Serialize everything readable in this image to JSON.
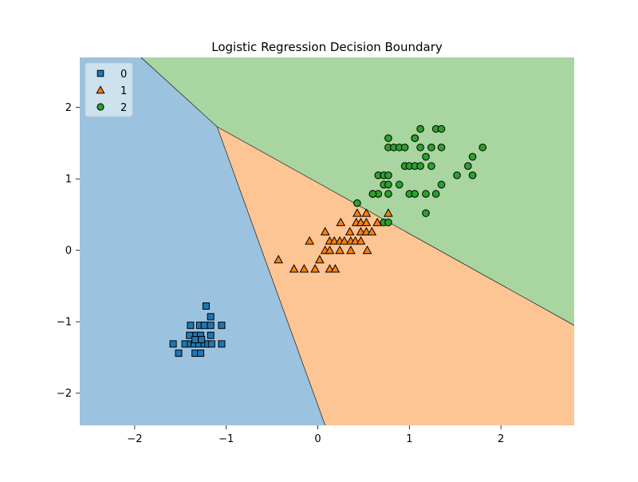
{
  "chart_data": {
    "type": "scatter",
    "title": "Logistic Regression Decision Boundary",
    "xlabel": "",
    "ylabel": "",
    "xlim": [
      -2.6,
      2.8
    ],
    "ylim": [
      -2.45,
      2.7
    ],
    "xticks": [
      -2,
      -1,
      0,
      1,
      2
    ],
    "yticks": [
      -2,
      -1,
      0,
      1,
      2
    ],
    "xtick_labels": [
      "−2",
      "−1",
      "0",
      "1",
      "2"
    ],
    "ytick_labels": [
      "−2",
      "−1",
      "0",
      "1",
      "2"
    ],
    "grid": false,
    "legend_position": "top-left",
    "regions": [
      {
        "class": "0",
        "color": "#9bc2de",
        "polygon": [
          [
            -2.6,
            -2.45
          ],
          [
            0.08,
            -2.45
          ],
          [
            -1.1,
            1.73
          ],
          [
            -1.93,
            2.7
          ],
          [
            -2.6,
            2.7
          ]
        ]
      },
      {
        "class": "1",
        "color": "#fdc494",
        "polygon": [
          [
            0.08,
            -2.45
          ],
          [
            2.8,
            -2.45
          ],
          [
            2.8,
            -1.05
          ],
          [
            -1.1,
            1.73
          ]
        ]
      },
      {
        "class": "2",
        "color": "#a8d5a0",
        "polygon": [
          [
            -1.1,
            1.73
          ],
          [
            2.8,
            -1.05
          ],
          [
            2.8,
            2.7
          ],
          [
            -1.93,
            2.7
          ]
        ]
      }
    ],
    "series": [
      {
        "name": "0",
        "marker": "square",
        "color": "#1f77b4",
        "points": [
          [
            -1.22,
            -0.78
          ],
          [
            -1.17,
            -0.93
          ],
          [
            -1.39,
            -1.05
          ],
          [
            -1.29,
            -1.05
          ],
          [
            -1.24,
            -1.05
          ],
          [
            -1.17,
            -1.05
          ],
          [
            -1.05,
            -1.05
          ],
          [
            -1.4,
            -1.19
          ],
          [
            -1.33,
            -1.19
          ],
          [
            -1.28,
            -1.19
          ],
          [
            -1.17,
            -1.19
          ],
          [
            -1.58,
            -1.31
          ],
          [
            -1.45,
            -1.31
          ],
          [
            -1.39,
            -1.31
          ],
          [
            -1.35,
            -1.31
          ],
          [
            -1.3,
            -1.31
          ],
          [
            -1.24,
            -1.31
          ],
          [
            -1.2,
            -1.31
          ],
          [
            -1.16,
            -1.31
          ],
          [
            -1.05,
            -1.31
          ],
          [
            -1.52,
            -1.44
          ],
          [
            -1.34,
            -1.44
          ],
          [
            -1.28,
            -1.44
          ],
          [
            -1.34,
            -1.25
          ],
          [
            -1.27,
            -1.25
          ]
        ]
      },
      {
        "name": "1",
        "marker": "triangle",
        "color": "#ff7f0e",
        "points": [
          [
            0.43,
            0.52
          ],
          [
            0.53,
            0.52
          ],
          [
            0.77,
            0.52
          ],
          [
            0.25,
            0.39
          ],
          [
            0.42,
            0.39
          ],
          [
            0.47,
            0.39
          ],
          [
            0.53,
            0.39
          ],
          [
            0.65,
            0.39
          ],
          [
            0.08,
            0.26
          ],
          [
            0.35,
            0.26
          ],
          [
            0.47,
            0.26
          ],
          [
            0.53,
            0.26
          ],
          [
            0.59,
            0.26
          ],
          [
            -0.09,
            0.13
          ],
          [
            0.13,
            0.13
          ],
          [
            0.18,
            0.13
          ],
          [
            0.24,
            0.13
          ],
          [
            0.29,
            0.13
          ],
          [
            0.36,
            0.13
          ],
          [
            0.41,
            0.13
          ],
          [
            0.47,
            0.13
          ],
          [
            0.08,
            0.0
          ],
          [
            0.13,
            0.0
          ],
          [
            0.24,
            0.0
          ],
          [
            0.36,
            0.0
          ],
          [
            0.54,
            0.0
          ],
          [
            -0.43,
            -0.13
          ],
          [
            0.02,
            -0.13
          ],
          [
            -0.26,
            -0.26
          ],
          [
            -0.15,
            -0.26
          ],
          [
            -0.03,
            -0.26
          ],
          [
            0.13,
            -0.26
          ],
          [
            0.19,
            -0.26
          ]
        ]
      },
      {
        "name": "2",
        "marker": "circle",
        "color": "#2ca02c",
        "points": [
          [
            1.12,
            1.7
          ],
          [
            1.29,
            1.7
          ],
          [
            1.35,
            1.7
          ],
          [
            0.77,
            1.57
          ],
          [
            1.06,
            1.57
          ],
          [
            1.06,
            1.57
          ],
          [
            0.77,
            1.44
          ],
          [
            0.83,
            1.44
          ],
          [
            0.89,
            1.44
          ],
          [
            0.95,
            1.44
          ],
          [
            1.12,
            1.44
          ],
          [
            1.24,
            1.44
          ],
          [
            1.35,
            1.44
          ],
          [
            1.8,
            1.44
          ],
          [
            1.18,
            1.31
          ],
          [
            1.69,
            1.31
          ],
          [
            0.95,
            1.18
          ],
          [
            1.0,
            1.18
          ],
          [
            1.06,
            1.18
          ],
          [
            1.12,
            1.18
          ],
          [
            1.24,
            1.18
          ],
          [
            1.64,
            1.18
          ],
          [
            0.66,
            1.05
          ],
          [
            0.72,
            1.05
          ],
          [
            0.77,
            1.05
          ],
          [
            1.52,
            1.05
          ],
          [
            1.69,
            1.05
          ],
          [
            0.72,
            0.92
          ],
          [
            0.77,
            0.92
          ],
          [
            0.89,
            0.92
          ],
          [
            1.35,
            0.92
          ],
          [
            0.6,
            0.79
          ],
          [
            0.66,
            0.79
          ],
          [
            0.77,
            0.79
          ],
          [
            1.0,
            0.79
          ],
          [
            1.06,
            0.79
          ],
          [
            1.18,
            0.79
          ],
          [
            1.29,
            0.79
          ],
          [
            0.43,
            0.66
          ],
          [
            1.18,
            0.52
          ],
          [
            0.72,
            0.39
          ],
          [
            0.77,
            0.39
          ],
          [
            0.6,
            0.79
          ]
        ]
      }
    ],
    "legend": [
      {
        "label": "0",
        "marker": "square",
        "color": "#1f77b4"
      },
      {
        "label": "1",
        "marker": "triangle",
        "color": "#ff7f0e"
      },
      {
        "label": "2",
        "marker": "circle",
        "color": "#2ca02c"
      }
    ]
  }
}
